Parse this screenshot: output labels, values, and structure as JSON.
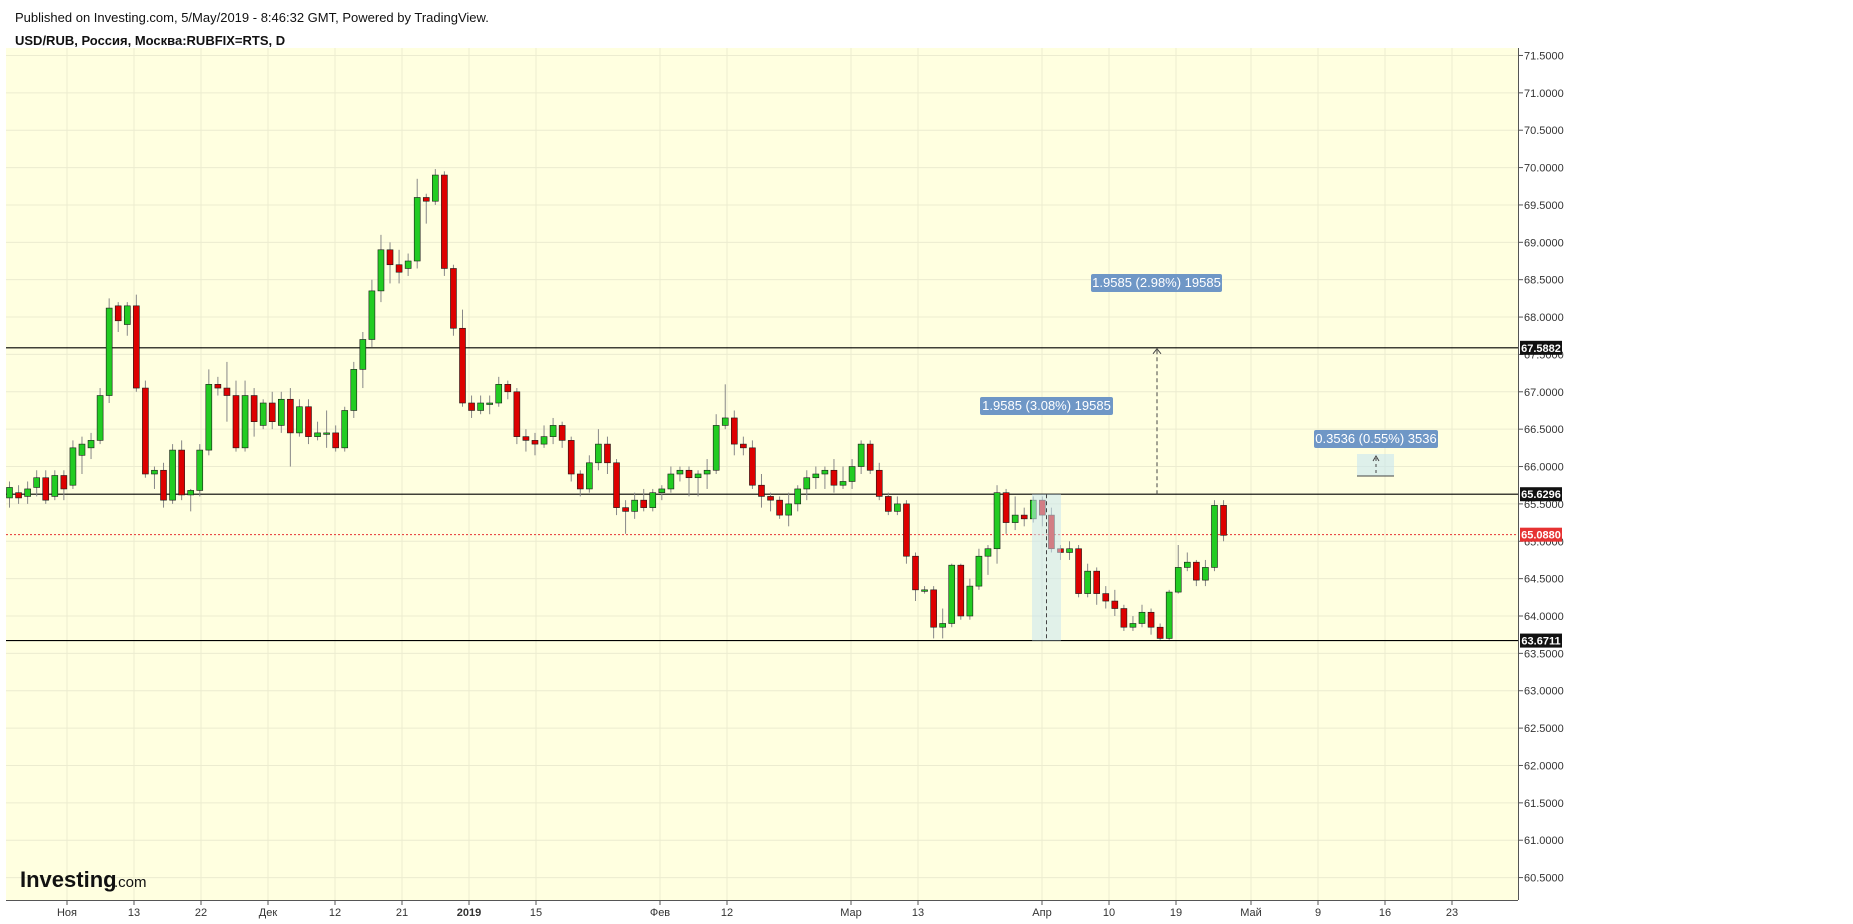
{
  "header": {
    "published": "Published on Investing.com, 5/May/2019 - 8:46:32 GMT, Powered by TradingView.",
    "symbol": "USD/RUB, Россия, Москва:RUBFIX=RTS, D"
  },
  "logo": {
    "main": "Investing",
    "suffix": ".com"
  },
  "colors": {
    "background": "#ffffe0",
    "up": "#22cc22",
    "down": "#dd0000",
    "last_price": "#e63232",
    "measure": "#6f97c6"
  },
  "chart_data": {
    "type": "candlestick",
    "ylim": [
      60.2,
      71.6
    ],
    "y_ticks": [
      60.5,
      61,
      61.5,
      62,
      62.5,
      63,
      63.5,
      64,
      64.5,
      65,
      65.5,
      66,
      66.5,
      67,
      67.5,
      68,
      68.5,
      69,
      69.5,
      70,
      70.5,
      71,
      71.5
    ],
    "y_tick_labels": [
      "60.5000",
      "61.0000",
      "61.5000",
      "62.0000",
      "62.5000",
      "63.0000",
      "63.5000",
      "64.0000",
      "64.5000",
      "65.0000",
      "65.5000",
      "66.0000",
      "66.5000",
      "67.0000",
      "67.5000",
      "68.0000",
      "68.5000",
      "69.0000",
      "69.5000",
      "70.0000",
      "70.5000",
      "71.0000",
      "71.5000"
    ],
    "x_tick_labels": [
      {
        "label": "Ноя",
        "bold": false
      },
      {
        "label": "13",
        "bold": false
      },
      {
        "label": "22",
        "bold": false
      },
      {
        "label": "Дек",
        "bold": false
      },
      {
        "label": "12",
        "bold": false
      },
      {
        "label": "21",
        "bold": false
      },
      {
        "label": "2019",
        "bold": true
      },
      {
        "label": "15",
        "bold": false
      },
      {
        "label": "Фев",
        "bold": false
      },
      {
        "label": "12",
        "bold": false
      },
      {
        "label": "Мар",
        "bold": false
      },
      {
        "label": "13",
        "bold": false
      },
      {
        "label": "Апр",
        "bold": false
      },
      {
        "label": "10",
        "bold": false
      },
      {
        "label": "19",
        "bold": false
      },
      {
        "label": "Май",
        "bold": false
      },
      {
        "label": "9",
        "bold": false
      },
      {
        "label": "16",
        "bold": false
      },
      {
        "label": "23",
        "bold": false
      }
    ],
    "horizontal_lines": [
      {
        "value": 67.5882,
        "label": "67.5882"
      },
      {
        "value": 65.6296,
        "label": "65.6296"
      },
      {
        "value": 63.6711,
        "label": "63.6711"
      }
    ],
    "last_price": {
      "value": 65.088,
      "label": "65.0880"
    },
    "measurements": [
      {
        "text": "1.9585 (2.98%) 19585"
      },
      {
        "text": "1.9585 (3.08%) 19585"
      },
      {
        "text": "0.3536 (0.55%) 3536"
      }
    ],
    "candles": [
      [
        65.58,
        65.72,
        65.45,
        65.8
      ],
      [
        65.65,
        65.58,
        65.5,
        65.75
      ],
      [
        65.6,
        65.7,
        65.5,
        65.8
      ],
      [
        65.72,
        65.85,
        65.6,
        65.95
      ],
      [
        65.85,
        65.55,
        65.5,
        65.95
      ],
      [
        65.6,
        65.88,
        65.55,
        65.95
      ],
      [
        65.88,
        65.7,
        65.55,
        65.95
      ],
      [
        65.75,
        66.25,
        65.7,
        66.35
      ],
      [
        66.15,
        66.3,
        65.9,
        66.4
      ],
      [
        66.25,
        66.35,
        66.1,
        66.45
      ],
      [
        66.35,
        66.95,
        66.3,
        67.05
      ],
      [
        66.95,
        68.12,
        66.85,
        68.25
      ],
      [
        68.15,
        67.95,
        67.8,
        68.2
      ],
      [
        67.9,
        68.15,
        67.75,
        68.2
      ],
      [
        68.15,
        67.05,
        67.0,
        68.3
      ],
      [
        67.05,
        65.9,
        65.85,
        67.15
      ],
      [
        65.9,
        65.95,
        65.7,
        66.0
      ],
      [
        65.95,
        65.55,
        65.45,
        66.05
      ],
      [
        65.55,
        66.22,
        65.5,
        66.3
      ],
      [
        66.22,
        65.62,
        65.55,
        66.35
      ],
      [
        65.62,
        65.68,
        65.4,
        65.7
      ],
      [
        65.68,
        66.22,
        65.6,
        66.3
      ],
      [
        66.22,
        67.1,
        66.15,
        67.3
      ],
      [
        67.1,
        67.05,
        66.95,
        67.2
      ],
      [
        67.05,
        66.95,
        66.6,
        67.4
      ],
      [
        66.95,
        66.25,
        66.2,
        67.15
      ],
      [
        66.25,
        66.95,
        66.2,
        67.15
      ],
      [
        66.95,
        66.6,
        66.4,
        67.05
      ],
      [
        66.55,
        66.85,
        66.5,
        66.9
      ],
      [
        66.85,
        66.6,
        66.5,
        67.0
      ],
      [
        66.55,
        66.9,
        66.45,
        67.0
      ],
      [
        66.9,
        66.45,
        66.0,
        67.05
      ],
      [
        66.45,
        66.8,
        66.4,
        66.9
      ],
      [
        66.8,
        66.4,
        66.3,
        66.9
      ],
      [
        66.4,
        66.45,
        66.35,
        66.6
      ],
      [
        66.45,
        66.45,
        66.25,
        66.75
      ],
      [
        66.45,
        66.25,
        66.2,
        66.55
      ],
      [
        66.25,
        66.75,
        66.2,
        66.8
      ],
      [
        66.75,
        67.3,
        66.65,
        67.4
      ],
      [
        67.3,
        67.7,
        67.05,
        67.8
      ],
      [
        67.7,
        68.35,
        67.6,
        68.5
      ],
      [
        68.35,
        68.9,
        68.2,
        69.1
      ],
      [
        68.9,
        68.7,
        68.45,
        69.0
      ],
      [
        68.7,
        68.6,
        68.45,
        68.9
      ],
      [
        68.65,
        68.75,
        68.55,
        68.85
      ],
      [
        68.75,
        69.6,
        68.65,
        69.85
      ],
      [
        69.6,
        69.55,
        69.25,
        69.65
      ],
      [
        69.55,
        69.9,
        69.5,
        69.98
      ],
      [
        69.9,
        68.65,
        68.55,
        69.95
      ],
      [
        68.65,
        67.85,
        67.75,
        68.7
      ],
      [
        67.85,
        66.85,
        66.8,
        68.1
      ],
      [
        66.85,
        66.75,
        66.65,
        66.95
      ],
      [
        66.75,
        66.85,
        66.7,
        66.95
      ],
      [
        66.85,
        66.85,
        66.7,
        66.95
      ],
      [
        66.85,
        67.1,
        66.8,
        67.2
      ],
      [
        67.1,
        67.0,
        66.9,
        67.15
      ],
      [
        67.0,
        66.4,
        66.3,
        67.05
      ],
      [
        66.4,
        66.35,
        66.2,
        66.5
      ],
      [
        66.35,
        66.3,
        66.15,
        66.45
      ],
      [
        66.3,
        66.4,
        66.25,
        66.55
      ],
      [
        66.4,
        66.55,
        66.3,
        66.65
      ],
      [
        66.55,
        66.35,
        66.25,
        66.6
      ],
      [
        66.35,
        65.9,
        65.8,
        66.4
      ],
      [
        65.9,
        65.7,
        65.6,
        65.95
      ],
      [
        65.7,
        66.05,
        65.65,
        66.15
      ],
      [
        66.05,
        66.3,
        65.95,
        66.5
      ],
      [
        66.3,
        66.05,
        65.9,
        66.4
      ],
      [
        66.05,
        65.45,
        65.35,
        66.1
      ],
      [
        65.45,
        65.4,
        65.1,
        65.55
      ],
      [
        65.4,
        65.55,
        65.3,
        65.65
      ],
      [
        65.55,
        65.45,
        65.4,
        65.7
      ],
      [
        65.45,
        65.65,
        65.4,
        65.7
      ],
      [
        65.65,
        65.7,
        65.55,
        65.75
      ],
      [
        65.7,
        65.9,
        65.65,
        66.0
      ],
      [
        65.9,
        65.95,
        65.8,
        66.0
      ],
      [
        65.95,
        65.85,
        65.6,
        66.0
      ],
      [
        65.85,
        65.9,
        65.6,
        65.95
      ],
      [
        65.9,
        65.95,
        65.7,
        66.1
      ],
      [
        65.95,
        66.55,
        65.9,
        66.7
      ],
      [
        66.55,
        66.65,
        66.5,
        67.1
      ],
      [
        66.65,
        66.3,
        66.15,
        66.75
      ],
      [
        66.3,
        66.25,
        66.15,
        66.4
      ],
      [
        66.25,
        65.75,
        65.7,
        66.35
      ],
      [
        65.75,
        65.6,
        65.45,
        65.9
      ],
      [
        65.6,
        65.55,
        65.4,
        65.65
      ],
      [
        65.55,
        65.35,
        65.3,
        65.6
      ],
      [
        65.35,
        65.5,
        65.2,
        65.65
      ],
      [
        65.5,
        65.7,
        65.4,
        65.75
      ],
      [
        65.7,
        65.85,
        65.55,
        65.95
      ],
      [
        65.85,
        65.9,
        65.7,
        66.0
      ],
      [
        65.9,
        65.95,
        65.7,
        66.0
      ],
      [
        65.95,
        65.75,
        65.65,
        66.1
      ],
      [
        65.75,
        65.8,
        65.7,
        66.0
      ],
      [
        65.8,
        66.0,
        65.7,
        66.1
      ],
      [
        66.0,
        66.3,
        65.9,
        66.35
      ],
      [
        66.3,
        65.95,
        65.9,
        66.35
      ],
      [
        65.95,
        65.6,
        65.55,
        66.05
      ],
      [
        65.6,
        65.4,
        65.35,
        65.65
      ],
      [
        65.4,
        65.5,
        65.35,
        65.6
      ],
      [
        65.5,
        64.8,
        64.7,
        65.55
      ],
      [
        64.8,
        64.35,
        64.2,
        64.85
      ],
      [
        64.35,
        64.35,
        64.3,
        64.4
      ],
      [
        64.35,
        63.85,
        63.7,
        64.4
      ],
      [
        63.85,
        63.9,
        63.7,
        64.1
      ],
      [
        63.9,
        64.68,
        63.85,
        64.7
      ],
      [
        64.68,
        64.0,
        63.95,
        64.7
      ],
      [
        64.0,
        64.4,
        63.95,
        64.5
      ],
      [
        64.4,
        64.8,
        64.35,
        64.9
      ],
      [
        64.8,
        64.9,
        64.55,
        64.95
      ],
      [
        64.9,
        65.65,
        64.7,
        65.75
      ],
      [
        65.65,
        65.25,
        65.1,
        65.7
      ],
      [
        65.25,
        65.35,
        65.15,
        65.6
      ],
      [
        65.35,
        65.3,
        65.2,
        65.45
      ],
      [
        65.3,
        65.55,
        65.25,
        65.6
      ],
      [
        65.55,
        65.35,
        65.2,
        65.6
      ],
      [
        65.35,
        64.9,
        64.85,
        65.45
      ],
      [
        64.9,
        64.85,
        64.75,
        64.95
      ],
      [
        64.85,
        64.9,
        64.75,
        65.0
      ],
      [
        64.9,
        64.3,
        64.25,
        64.95
      ],
      [
        64.3,
        64.6,
        64.25,
        64.7
      ],
      [
        64.6,
        64.3,
        64.15,
        64.65
      ],
      [
        64.3,
        64.2,
        64.1,
        64.4
      ],
      [
        64.2,
        64.1,
        64.0,
        64.35
      ],
      [
        64.1,
        63.85,
        63.8,
        64.15
      ],
      [
        63.85,
        63.9,
        63.8,
        64.0
      ],
      [
        63.9,
        64.05,
        63.85,
        64.15
      ],
      [
        64.05,
        63.85,
        63.75,
        64.1
      ],
      [
        63.85,
        63.7,
        63.68,
        63.9
      ],
      [
        63.7,
        64.32,
        63.68,
        64.35
      ],
      [
        64.32,
        64.65,
        64.3,
        64.95
      ],
      [
        64.65,
        64.72,
        64.6,
        64.85
      ],
      [
        64.72,
        64.48,
        64.4,
        64.75
      ],
      [
        64.48,
        64.65,
        64.4,
        64.75
      ],
      [
        64.65,
        65.48,
        64.6,
        65.55
      ],
      [
        65.48,
        65.08,
        65.0,
        65.55
      ]
    ]
  }
}
